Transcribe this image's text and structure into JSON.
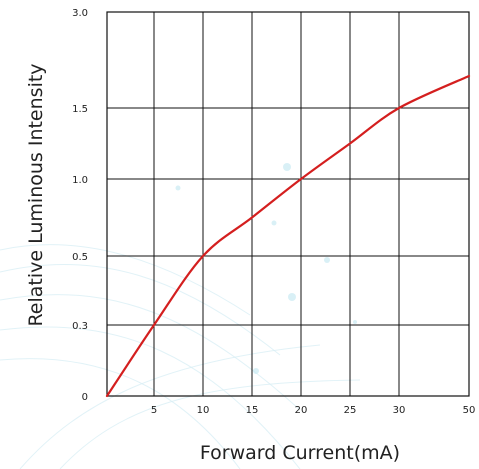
{
  "chart_data": {
    "type": "line",
    "title": "",
    "xlabel": "Forward Current(mA)",
    "ylabel": "Relative Luminous Intensity",
    "x_ticks": [
      "5",
      "10",
      "15",
      "20",
      "25",
      "30",
      "50"
    ],
    "y_ticks": [
      "0",
      "0.3",
      "0.5",
      "1.0",
      "1.5",
      "3.0"
    ],
    "grid": true,
    "legend": "none",
    "series": [
      {
        "x": [
          2,
          5,
          10,
          15,
          20,
          25,
          30,
          50
        ],
        "y": [
          0,
          0.3,
          0.5,
          0.75,
          1.0,
          1.25,
          1.5,
          2.0
        ],
        "color": "#d41f1f"
      }
    ]
  }
}
